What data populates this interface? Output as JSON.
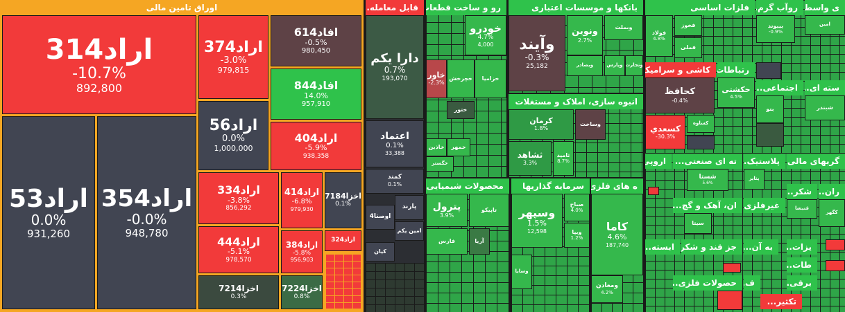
{
  "colors": {
    "red": "#f23a3a",
    "green": "#2fc24b",
    "dark": "#414552",
    "orange": "#f5a623"
  },
  "bonds": {
    "title": "اوراق تامین مالی",
    "tiles": [
      {
        "name": "اراد314",
        "pct": "-10.7%",
        "vol": "892,800"
      },
      {
        "name": "اراد53",
        "pct": "0.0%",
        "vol": "931,260"
      },
      {
        "name": "اراد354",
        "pct": "-0.0%",
        "vol": "948,780"
      },
      {
        "name": "اراد374",
        "pct": "-3.0%",
        "vol": "979,815"
      },
      {
        "name": "اراد56",
        "pct": "0.0%",
        "vol": "1,000,000"
      },
      {
        "name": "افاد614",
        "pct": "-0.5%",
        "vol": "980,450"
      },
      {
        "name": "افاد844",
        "pct": "14.0%",
        "vol": "957,910"
      },
      {
        "name": "اراد404",
        "pct": "-5.9%",
        "vol": "938,358"
      },
      {
        "name": "اراد334",
        "pct": "-3.8%",
        "vol": "856,292"
      },
      {
        "name": "اراد414",
        "pct": "-6.8%",
        "vol": "979,930"
      },
      {
        "name": "اخزا7184",
        "pct": "0.1%",
        "vol": ""
      },
      {
        "name": "اراد444",
        "pct": "-5.1%",
        "vol": "978,570"
      },
      {
        "name": "اراد384",
        "pct": "-5.8%",
        "vol": "956,903"
      },
      {
        "name": "اراد324",
        "pct": "",
        "vol": ""
      },
      {
        "name": "اخزا7214",
        "pct": "0.3%",
        "vol": ""
      },
      {
        "name": "اخزا7224",
        "pct": "0.8%",
        "vol": ""
      }
    ]
  },
  "tradable": {
    "title": "...قابل معامله",
    "tiles": [
      {
        "name": "دارا یکم",
        "pct": "0.7%",
        "vol": "193,070"
      },
      {
        "name": "اعتماد",
        "pct": "0.1%",
        "vol": "33,388"
      },
      {
        "name": "کمند",
        "pct": "0.1%"
      },
      {
        "name": "پارند"
      },
      {
        "name": "اوصتا4"
      },
      {
        "name": "امین یکم"
      },
      {
        "name": "کیان"
      }
    ]
  },
  "auto": {
    "title": "...رو و ساخت قطعات",
    "tiles": [
      {
        "name": "خودرو",
        "pct": "4.7%",
        "vol": "4,000"
      },
      {
        "name": "خاور",
        "pct": "-2.3%"
      },
      {
        "name": "خچرخش"
      },
      {
        "name": "خزامیا"
      },
      {
        "name": "ختور"
      },
      {
        "name": "خاذین"
      },
      {
        "name": "خمهر"
      },
      {
        "name": "خگستر"
      }
    ]
  },
  "banks": {
    "title": "بانکها و موسسات اعتباری",
    "tiles": [
      {
        "name": "وآیند",
        "pct": "-0.3%",
        "vol": "25,182"
      },
      {
        "name": "ونوین",
        "pct": "2.7%"
      },
      {
        "name": "وبملت"
      },
      {
        "name": "وبصادر"
      },
      {
        "name": "وپارس"
      },
      {
        "name": "وتجارت"
      }
    ]
  },
  "construction": {
    "title": "انبوه سازی، املاک و مستغلات",
    "tiles": [
      {
        "name": "کرمان",
        "pct": "1.8%"
      },
      {
        "name": "وساخت"
      },
      {
        "name": "ثشاهد",
        "pct": "3.3%"
      },
      {
        "name": "ثامید",
        "pct": "8.7%"
      }
    ]
  },
  "chemicals": {
    "title": "محصولات شیمیایی",
    "tiles": [
      {
        "name": "پترول",
        "pct": "3.9%"
      },
      {
        "name": "تاپیکو"
      },
      {
        "name": "فارس"
      },
      {
        "name": "آریا"
      }
    ]
  },
  "investment": {
    "title": "سرمایه گذاریها",
    "tiles": [
      {
        "name": "وسپهر",
        "pct": "1.5%",
        "vol": "12,598"
      },
      {
        "name": "صباح",
        "pct": "4.0%"
      },
      {
        "name": "ویپا",
        "pct": "1.2%"
      },
      {
        "name": "وسایا"
      }
    ]
  },
  "mining": {
    "title": "ه های فلزی",
    "tiles": [
      {
        "name": "کاما",
        "pct": "4.6%",
        "vol": "187,740"
      },
      {
        "name": "ومعادن",
        "pct": "4.2%"
      }
    ]
  },
  "metals": {
    "title": "فلزات اساسی",
    "tiles": [
      {
        "name": "فولاد",
        "pct": "4.8%"
      },
      {
        "name": "فخوز"
      },
      {
        "name": "فملی"
      }
    ]
  },
  "copper": {
    "title": "کاشی و سرامیک",
    "tiles": [
      {
        "name": "کحافظ",
        "pct": "-0.4%"
      },
      {
        "name": "کسعدي",
        "pct": "-30.3%"
      },
      {
        "name": "کساوه"
      }
    ]
  },
  "telecom": {
    "title": "...رتباطات",
    "tiles": [
      {
        "name": "حکشتی",
        "pct": "4.5%"
      }
    ]
  },
  "social": {
    "title": "...اجتماعی",
    "tiles": [
      {
        "name": "بنو"
      }
    ]
  },
  "other_heads": [
    {
      "key": "h1",
      "label": "...روآب گرم"
    },
    {
      "key": "h2",
      "label": "...ی واسط"
    },
    {
      "key": "h3",
      "label": "...سته ای"
    },
    {
      "key": "h4",
      "label": "...ته ای صنعتی"
    },
    {
      "key": "h5",
      "label": "...پلاستیک"
    },
    {
      "key": "h6",
      "label": "...گریهای مالی"
    },
    {
      "key": "h7",
      "label": "...شکر"
    },
    {
      "key": "h8",
      "label": "...ران"
    },
    {
      "key": "h9",
      "label": "...ان، آهک و گچ"
    },
    {
      "key": "h10",
      "label": "...غیرفلزی"
    },
    {
      "key": "h11",
      "label": "...ابسته"
    },
    {
      "key": "h12",
      "label": "...جز قند و شکر"
    },
    {
      "key": "h13",
      "label": "...به آن"
    },
    {
      "key": "h14",
      "label": "...یزات"
    },
    {
      "key": "h15",
      "label": "...حصولات فلزی"
    },
    {
      "key": "h16",
      "label": "...برقی"
    },
    {
      "key": "h17",
      "label": "...تکثیر"
    },
    {
      "key": "h18",
      "label": "...ف"
    },
    {
      "key": "h19",
      "label": "...طات"
    },
    {
      "key": "h20",
      "label": "...اروپی"
    }
  ],
  "misc_tiles": [
    {
      "name": "بیبوند",
      "pct": "-0.9%"
    },
    {
      "name": "امین"
    },
    {
      "name": "شبندر"
    },
    {
      "name": "شستا",
      "pct": "5.6%"
    },
    {
      "name": "پتایر"
    },
    {
      "name": "قنیشا"
    },
    {
      "name": "کگهر"
    },
    {
      "name": "سیتا"
    }
  ]
}
